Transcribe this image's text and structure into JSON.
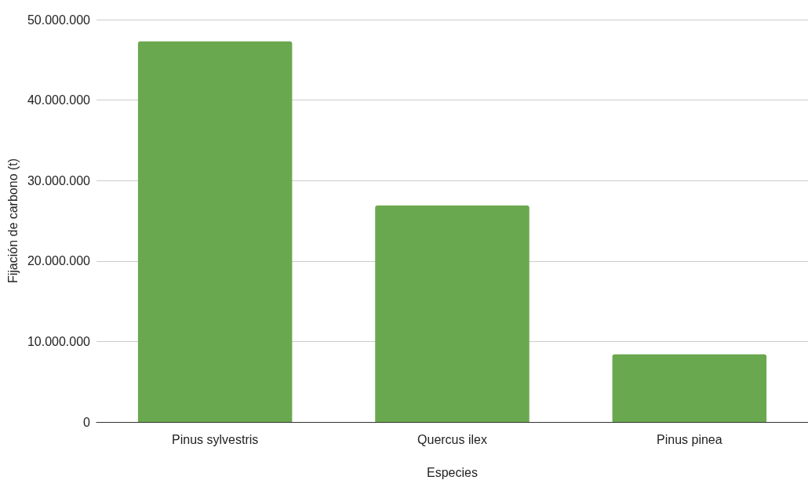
{
  "chart_data": {
    "type": "bar",
    "xlabel": "Especies",
    "ylabel": "Fijación de carbono (t)",
    "categories": [
      "Pinus sylvestris",
      "Quercus ilex",
      "Pinus pinea"
    ],
    "values": [
      47300000,
      26900000,
      8400000
    ],
    "color": "#6aa84f",
    "ylim": [
      0,
      50000000
    ],
    "yticks": [
      {
        "value": 0,
        "label": "0"
      },
      {
        "value": 10000000,
        "label": "10.000.000"
      },
      {
        "value": 20000000,
        "label": "20.000.000"
      },
      {
        "value": 30000000,
        "label": "30.000.000"
      },
      {
        "value": 40000000,
        "label": "40.000.000"
      },
      {
        "value": 50000000,
        "label": "50.000.000"
      }
    ],
    "grid": "y"
  }
}
